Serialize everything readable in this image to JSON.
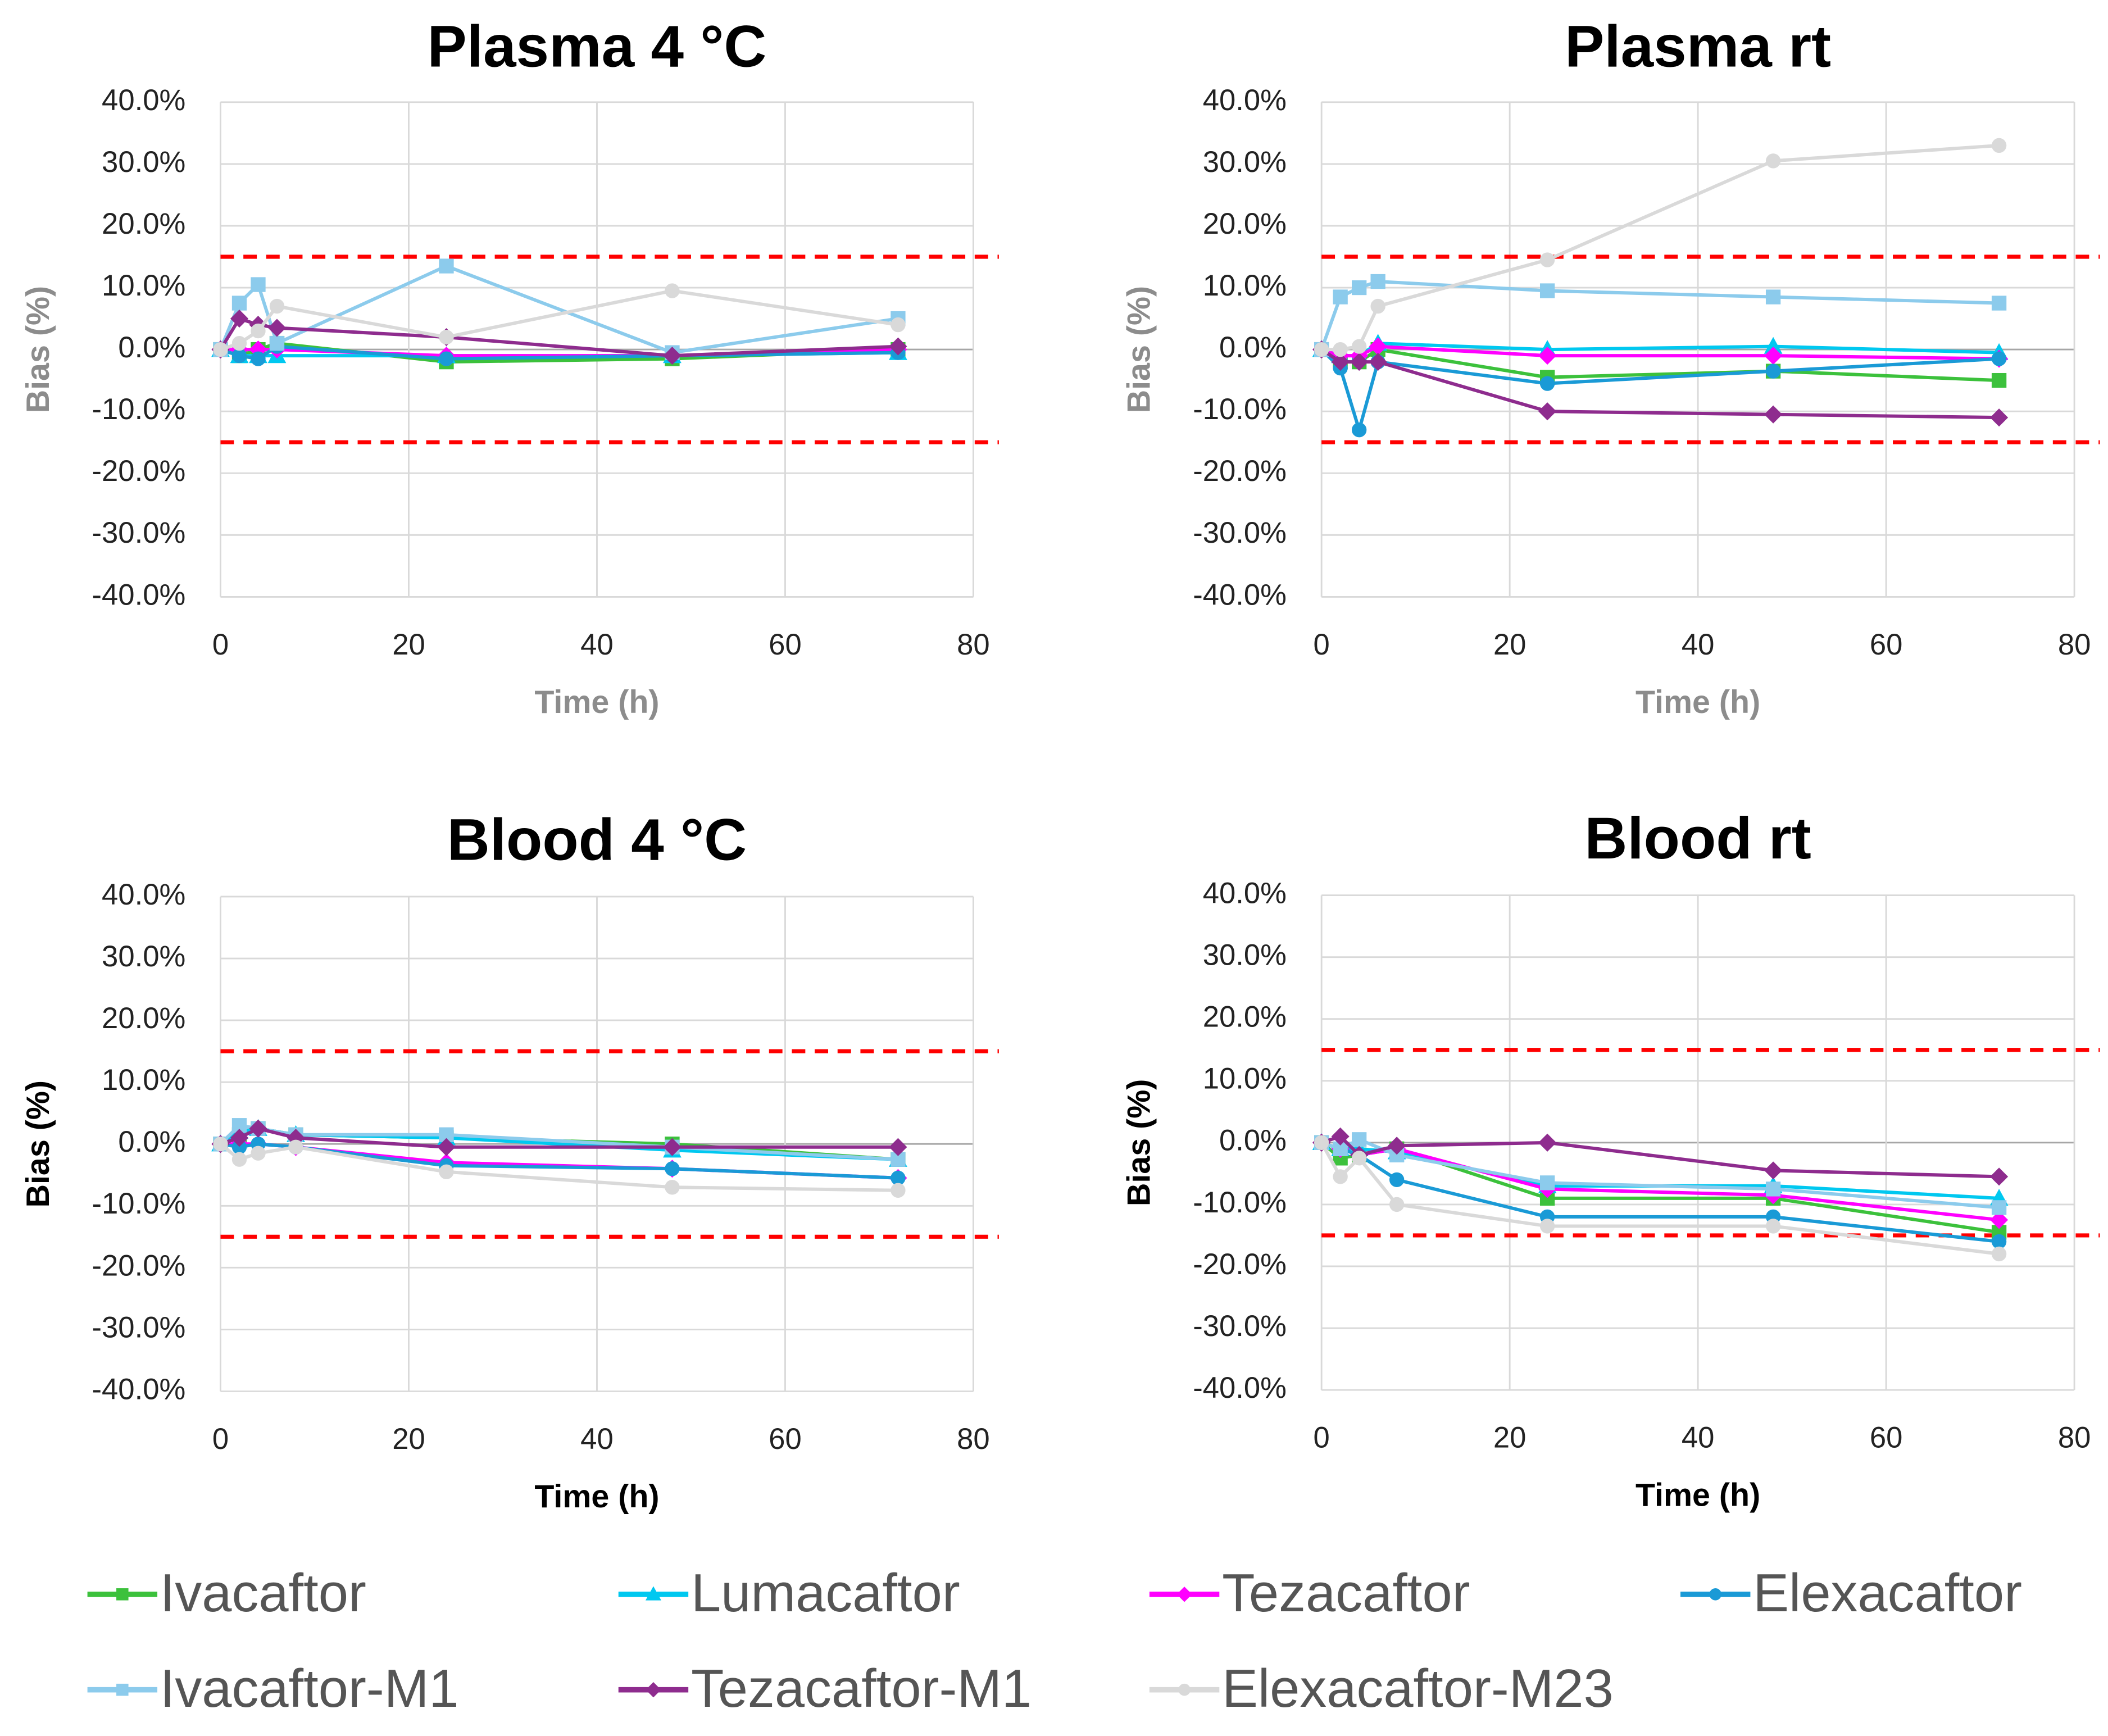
{
  "chart_data": [
    {
      "type": "line",
      "title": "Plasma 4 °C",
      "xlabel": "Time (h)",
      "ylabel": "Bias (%)",
      "axis_title_color": "#8c8c8c",
      "xlim": [
        0,
        80
      ],
      "xticks": [
        0,
        20,
        40,
        60,
        80
      ],
      "ylim": [
        -40,
        40
      ],
      "yticks": [
        {
          "value": -40,
          "label": "-40.0%"
        },
        {
          "value": -30,
          "label": "-30.0%"
        },
        {
          "value": -20,
          "label": "-20.0%"
        },
        {
          "value": -10,
          "label": "-10.0%"
        },
        {
          "value": 0,
          "label": "0.0%"
        },
        {
          "value": 10,
          "label": "10.0%"
        },
        {
          "value": 20,
          "label": "20.0%"
        },
        {
          "value": 30,
          "label": "30.0%"
        },
        {
          "value": 40,
          "label": "40.0%"
        }
      ],
      "grid": true,
      "hlines": [
        15,
        -15
      ],
      "hline_color": "#ff0000",
      "x": [
        0,
        2,
        4,
        6,
        24,
        48,
        72
      ],
      "series": [
        {
          "name": "Ivacaftor",
          "color": "#3cc13c",
          "marker": "square",
          "values": [
            0,
            -1,
            0,
            1,
            -2,
            -1.5,
            0
          ]
        },
        {
          "name": "Lumacaftor",
          "color": "#00c8f0",
          "marker": "triangle",
          "values": [
            0,
            -1,
            -1,
            -1,
            -1,
            -1,
            -0.5
          ]
        },
        {
          "name": "Tezacaftor",
          "color": "#ff00ff",
          "marker": "diamond",
          "values": [
            0,
            0,
            0,
            0,
            -1,
            -1,
            0
          ]
        },
        {
          "name": "Elexacaftor",
          "color": "#1a9ad6",
          "marker": "circle",
          "values": [
            0,
            -1,
            -1.5,
            0.5,
            -1.5,
            -1,
            -0.5
          ]
        },
        {
          "name": "Ivacaftor-M1",
          "color": "#8ccbec",
          "marker": "square",
          "values": [
            0,
            7.5,
            10.5,
            1,
            13.5,
            -0.5,
            5
          ]
        },
        {
          "name": "Tezacaftor-M1",
          "color": "#8e2c8e",
          "marker": "diamond",
          "values": [
            0,
            5,
            4,
            3.5,
            2,
            -1,
            0.5
          ]
        },
        {
          "name": "Elexacaftor-M23",
          "color": "#d9d9d9",
          "marker": "circle",
          "values": [
            0,
            1,
            3,
            7,
            2,
            9.5,
            4
          ]
        }
      ]
    },
    {
      "type": "line",
      "title": "Plasma rt",
      "xlabel": "Time (h)",
      "ylabel": "Bias (%)",
      "axis_title_color": "#8c8c8c",
      "xlim": [
        0,
        80
      ],
      "xticks": [
        0,
        20,
        40,
        60,
        80
      ],
      "ylim": [
        -40,
        40
      ],
      "yticks": [
        {
          "value": -40,
          "label": "-40.0%"
        },
        {
          "value": -30,
          "label": "-30.0%"
        },
        {
          "value": -20,
          "label": "-20.0%"
        },
        {
          "value": -10,
          "label": "-10.0%"
        },
        {
          "value": 0,
          "label": "0.0%"
        },
        {
          "value": 10,
          "label": "10.0%"
        },
        {
          "value": 20,
          "label": "20.0%"
        },
        {
          "value": 30,
          "label": "30.0%"
        },
        {
          "value": 40,
          "label": "40.0%"
        }
      ],
      "grid": true,
      "hlines": [
        15,
        -15
      ],
      "hline_color": "#ff0000",
      "x": [
        0,
        2,
        4,
        6,
        24,
        48,
        72
      ],
      "series": [
        {
          "name": "Ivacaftor",
          "color": "#3cc13c",
          "marker": "square",
          "values": [
            0,
            -2,
            -2,
            0,
            -4.5,
            -3.5,
            -5
          ]
        },
        {
          "name": "Lumacaftor",
          "color": "#00c8f0",
          "marker": "triangle",
          "values": [
            0,
            -1,
            -1,
            1,
            0,
            0.5,
            -0.5
          ]
        },
        {
          "name": "Tezacaftor",
          "color": "#ff00ff",
          "marker": "diamond",
          "values": [
            0,
            -1,
            -1,
            0.5,
            -1,
            -1,
            -1.5
          ]
        },
        {
          "name": "Elexacaftor",
          "color": "#1a9ad6",
          "marker": "circle",
          "values": [
            0,
            -3,
            -13,
            -2,
            -5.5,
            -3.5,
            -1.5
          ]
        },
        {
          "name": "Ivacaftor-M1",
          "color": "#8ccbec",
          "marker": "square",
          "values": [
            0,
            8.5,
            10,
            11,
            9.5,
            8.5,
            7.5
          ]
        },
        {
          "name": "Tezacaftor-M1",
          "color": "#8e2c8e",
          "marker": "diamond",
          "values": [
            0,
            -2,
            -2,
            -2,
            -10,
            -10.5,
            -11
          ]
        },
        {
          "name": "Elexacaftor-M23",
          "color": "#d9d9d9",
          "marker": "circle",
          "values": [
            0,
            0,
            0.5,
            7,
            14.5,
            30.5,
            33
          ]
        }
      ]
    },
    {
      "type": "line",
      "title": "Blood 4 °C",
      "xlabel": "Time (h)",
      "ylabel": "Bias (%)",
      "axis_title_color": "#000000",
      "xlim": [
        0,
        80
      ],
      "xticks": [
        0,
        20,
        40,
        60,
        80
      ],
      "ylim": [
        -40,
        40
      ],
      "yticks": [
        {
          "value": -40,
          "label": "-40.0%"
        },
        {
          "value": -30,
          "label": "-30.0%"
        },
        {
          "value": -20,
          "label": "-20.0%"
        },
        {
          "value": -10,
          "label": "-10.0%"
        },
        {
          "value": 0,
          "label": "0.0%"
        },
        {
          "value": 10,
          "label": "10.0%"
        },
        {
          "value": 20,
          "label": "20.0%"
        },
        {
          "value": 30,
          "label": "30.0%"
        },
        {
          "value": 40,
          "label": "40.0%"
        }
      ],
      "grid": true,
      "hlines": [
        15,
        -15
      ],
      "hline_color": "#ff0000",
      "x": [
        0,
        2,
        4,
        8,
        24,
        48,
        72
      ],
      "series": [
        {
          "name": "Ivacaftor",
          "color": "#3cc13c",
          "marker": "square",
          "values": [
            0,
            1.5,
            2.5,
            1.5,
            1,
            0,
            -2.5
          ]
        },
        {
          "name": "Lumacaftor",
          "color": "#00c8f0",
          "marker": "triangle",
          "values": [
            0,
            2,
            2.5,
            1.5,
            1,
            -1,
            -2.5
          ]
        },
        {
          "name": "Tezacaftor",
          "color": "#ff00ff",
          "marker": "diamond",
          "values": [
            0,
            0,
            0,
            -0.5,
            -3,
            -4,
            -5.5
          ]
        },
        {
          "name": "Elexacaftor",
          "color": "#1a9ad6",
          "marker": "circle",
          "values": [
            0,
            -0.5,
            0,
            -0.5,
            -3.5,
            -4,
            -5.5
          ]
        },
        {
          "name": "Ivacaftor-M1",
          "color": "#8ccbec",
          "marker": "square",
          "values": [
            0,
            3,
            2.5,
            1.5,
            1.5,
            -0.5,
            -2.5
          ]
        },
        {
          "name": "Tezacaftor-M1",
          "color": "#8e2c8e",
          "marker": "diamond",
          "values": [
            0,
            1,
            2.5,
            1,
            -0.5,
            -0.5,
            -0.5
          ]
        },
        {
          "name": "Elexacaftor-M23",
          "color": "#d9d9d9",
          "marker": "circle",
          "values": [
            0,
            -2.5,
            -1.5,
            -0.5,
            -4.5,
            -7,
            -7.5
          ]
        }
      ]
    },
    {
      "type": "line",
      "title": "Blood rt",
      "xlabel": "Time (h)",
      "ylabel": "Bias (%)",
      "axis_title_color": "#000000",
      "xlim": [
        0,
        80
      ],
      "xticks": [
        0,
        20,
        40,
        60,
        80
      ],
      "ylim": [
        -40,
        40
      ],
      "yticks": [
        {
          "value": -40,
          "label": "-40.0%"
        },
        {
          "value": -30,
          "label": "-30.0%"
        },
        {
          "value": -20,
          "label": "-20.0%"
        },
        {
          "value": -10,
          "label": "-10.0%"
        },
        {
          "value": 0,
          "label": "0.0%"
        },
        {
          "value": 10,
          "label": "10.0%"
        },
        {
          "value": 20,
          "label": "20.0%"
        },
        {
          "value": 30,
          "label": "30.0%"
        },
        {
          "value": 40,
          "label": "40.0%"
        }
      ],
      "grid": true,
      "hlines": [
        15,
        -15
      ],
      "hline_color": "#ff0000",
      "x": [
        0,
        2,
        4,
        8,
        24,
        48,
        72
      ],
      "series": [
        {
          "name": "Ivacaftor",
          "color": "#3cc13c",
          "marker": "square",
          "values": [
            0,
            -2.5,
            -2,
            -1,
            -9,
            -9,
            -14.5
          ]
        },
        {
          "name": "Lumacaftor",
          "color": "#00c8f0",
          "marker": "triangle",
          "values": [
            0,
            -1,
            -1,
            -1.5,
            -7,
            -7,
            -9
          ]
        },
        {
          "name": "Tezacaftor",
          "color": "#ff00ff",
          "marker": "diamond",
          "values": [
            0,
            -1,
            -2,
            -1,
            -7.5,
            -8.5,
            -12.5
          ]
        },
        {
          "name": "Elexacaftor",
          "color": "#1a9ad6",
          "marker": "circle",
          "values": [
            0,
            -1,
            -2,
            -6,
            -12,
            -12,
            -16
          ]
        },
        {
          "name": "Ivacaftor-M1",
          "color": "#8ccbec",
          "marker": "square",
          "values": [
            0,
            -1,
            0.5,
            -2,
            -6.5,
            -7.5,
            -10.5
          ]
        },
        {
          "name": "Tezacaftor-M1",
          "color": "#8e2c8e",
          "marker": "diamond",
          "values": [
            0,
            1,
            -2,
            -0.5,
            0,
            -4.5,
            -5.5
          ]
        },
        {
          "name": "Elexacaftor-M23",
          "color": "#d9d9d9",
          "marker": "circle",
          "values": [
            0,
            -5.5,
            -2.5,
            -10,
            -13.5,
            -13.5,
            -18
          ]
        }
      ]
    }
  ]
}
